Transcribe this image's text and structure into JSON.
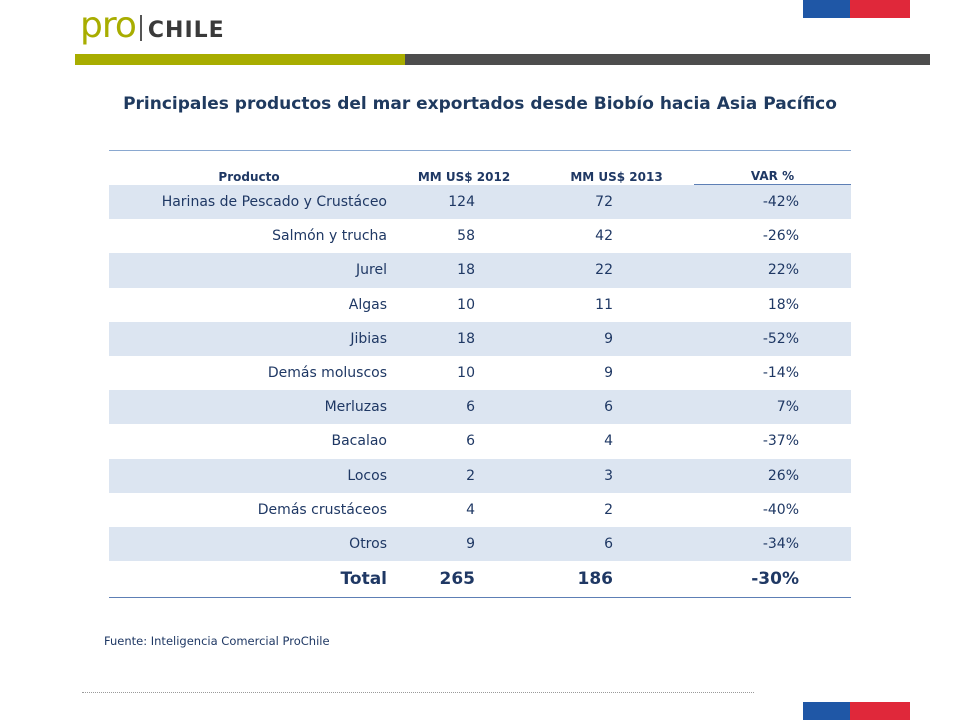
{
  "brand": {
    "pro": "pro",
    "chile": "CHILE"
  },
  "colors": {
    "green": "#a8ad00",
    "dark_gray": "#4d4d4d",
    "flag_blue": "#1f57a6",
    "flag_red": "#e0283a",
    "text_navy": "#1f3864",
    "row_shade": "#dce5f1"
  },
  "title": "Principales productos del mar exportados desde Biobío hacia Asia Pacífico",
  "table": {
    "headers": [
      "Producto",
      "MM US$ 2012",
      "MM US$ 2013",
      "VAR %"
    ],
    "rows": [
      [
        "Harinas de Pescado y Crustáceo",
        "124",
        "72",
        "-42%"
      ],
      [
        "Salmón y trucha",
        "58",
        "42",
        "-26%"
      ],
      [
        "Jurel",
        "18",
        "22",
        "22%"
      ],
      [
        "Algas",
        "10",
        "11",
        "18%"
      ],
      [
        "Jibias",
        "18",
        "9",
        "-52%"
      ],
      [
        "Demás moluscos",
        "10",
        "9",
        "-14%"
      ],
      [
        "Merluzas",
        "6",
        "6",
        "7%"
      ],
      [
        "Bacalao",
        "6",
        "4",
        "-37%"
      ],
      [
        "Locos",
        "2",
        "3",
        "26%"
      ],
      [
        "Demás crustáceos",
        "4",
        "2",
        "-40%"
      ],
      [
        "Otros",
        "9",
        "6",
        "-34%"
      ]
    ],
    "total": [
      "Total",
      "265",
      "186",
      "-30%"
    ]
  },
  "source": "Fuente: Inteligencia Comercial ProChile"
}
